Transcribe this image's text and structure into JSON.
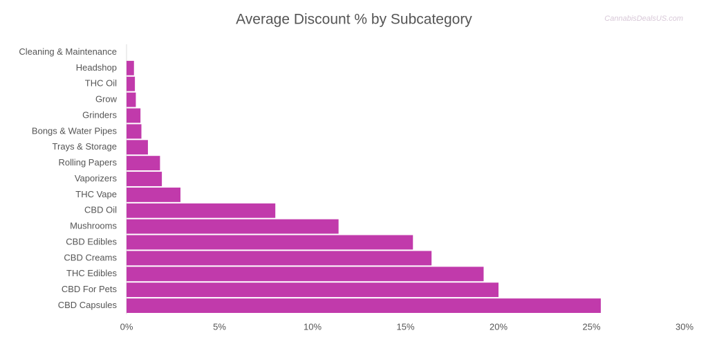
{
  "chart_data": {
    "type": "hbar",
    "title": "Average Discount % by Subcategory",
    "watermark": "CannabisDealsUS.com",
    "categories": [
      "Cleaning & Maintenance",
      "Headshop",
      "THC Oil",
      "Grow",
      "Grinders",
      "Bongs & Water Pipes",
      "Trays & Storage",
      "Rolling Papers",
      "Vaporizers",
      "THC Vape",
      "CBD Oil",
      "Mushrooms",
      "CBD Edibles",
      "CBD Creams",
      "THC Edibles",
      "CBD For Pets",
      "CBD Capsules"
    ],
    "values": [
      0,
      0.4,
      0.45,
      0.5,
      0.75,
      0.8,
      1.15,
      1.8,
      1.9,
      2.9,
      8.0,
      11.4,
      15.4,
      16.4,
      19.2,
      20.0,
      25.5
    ],
    "color": "#c13aab",
    "xlim": [
      0,
      30
    ],
    "xticks": [
      {
        "value": 0,
        "label": "0%"
      },
      {
        "value": 5,
        "label": "5%"
      },
      {
        "value": 10,
        "label": "10%"
      },
      {
        "value": 15,
        "label": "15%"
      },
      {
        "value": 20,
        "label": "20%"
      },
      {
        "value": 25,
        "label": "25%"
      },
      {
        "value": 30,
        "label": "30%"
      }
    ],
    "grid": false
  }
}
